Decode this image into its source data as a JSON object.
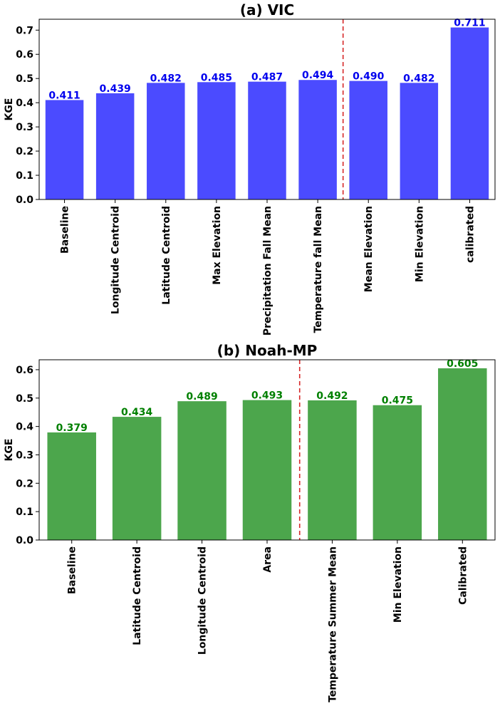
{
  "chart_data": [
    {
      "type": "bar",
      "title": "(a) VIC",
      "ylabel": "KGE",
      "xlabel": "",
      "ylim": [
        0,
        0.745
      ],
      "yticks": [
        "0.0",
        "0.1",
        "0.2",
        "0.3",
        "0.4",
        "0.5",
        "0.6",
        "0.7"
      ],
      "categories": [
        "Baseline",
        "Longitude Centroid",
        "Latitude Centroid",
        "Max Elevation",
        "Precipitation Fall Mean",
        "Temperature fall Mean",
        "Mean Elevation",
        "Min Elevation",
        "calibrated"
      ],
      "values": [
        0.411,
        0.439,
        0.482,
        0.485,
        0.487,
        0.494,
        0.49,
        0.482,
        0.711
      ],
      "data_labels": [
        "0.411",
        "0.439",
        "0.482",
        "0.485",
        "0.487",
        "0.494",
        "0.490",
        "0.482",
        "0.711"
      ],
      "bar_color": "#4b4bff",
      "label_color": "#0000ee",
      "divider_after_index": 5,
      "divider_color": "#d62728",
      "grid": false
    },
    {
      "type": "bar",
      "title": "(b) Noah-MP",
      "ylabel": "KGE",
      "xlabel": "",
      "ylim": [
        0,
        0.635
      ],
      "yticks": [
        "0.0",
        "0.1",
        "0.2",
        "0.3",
        "0.4",
        "0.5",
        "0.6"
      ],
      "categories": [
        "Baseline",
        "Latitude Centroid",
        "Longitude Centroid",
        "Area",
        "Temperature Summer Mean",
        "Min Elevation",
        "Calibrated"
      ],
      "values": [
        0.379,
        0.434,
        0.489,
        0.493,
        0.492,
        0.475,
        0.605
      ],
      "data_labels": [
        "0.379",
        "0.434",
        "0.489",
        "0.493",
        "0.492",
        "0.475",
        "0.605"
      ],
      "bar_color": "#4ca64c",
      "label_color": "#008000",
      "divider_after_index": 3,
      "divider_color": "#d62728",
      "grid": false
    }
  ]
}
